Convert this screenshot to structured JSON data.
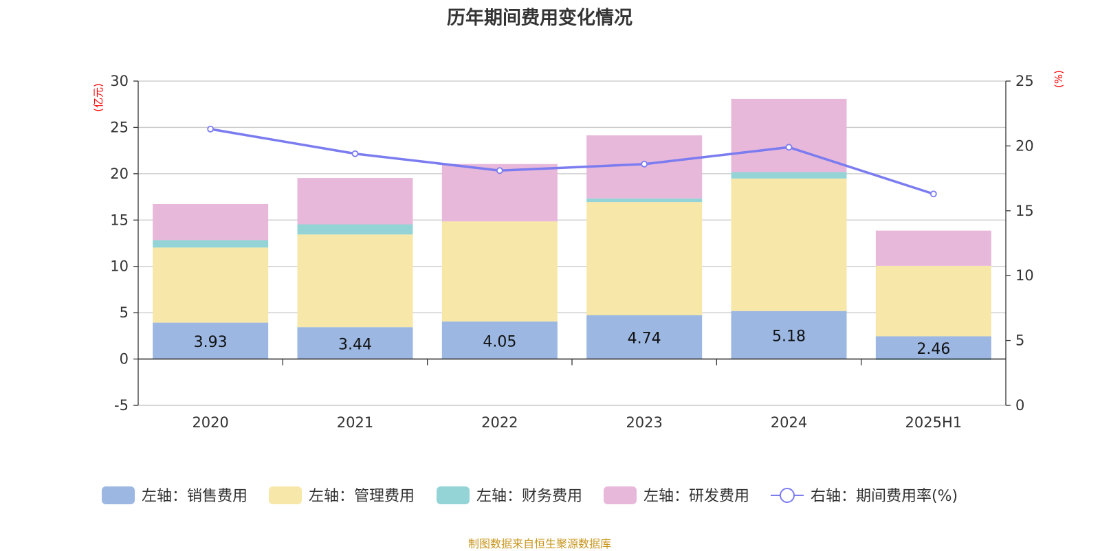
{
  "title": "历年期间费用变化情况",
  "footer": "制图数据来自恒生聚源数据库",
  "colors": {
    "sales": "#9bb7e2",
    "admin": "#f7e7a8",
    "finance": "#94d4d6",
    "rnd": "#e8b8da",
    "rate": "#7b7cf0",
    "unit": "#ff0000"
  },
  "chart_data": {
    "type": "bar",
    "stacked": true,
    "categories": [
      "2020",
      "2021",
      "2022",
      "2023",
      "2024",
      "2025H1"
    ],
    "left_axis": {
      "unit": "(亿元)",
      "ylim": [
        -5,
        30
      ],
      "ticks": [
        "-5",
        "0",
        "5",
        "10",
        "15",
        "20",
        "25",
        "30"
      ]
    },
    "right_axis": {
      "unit": "(%)",
      "ylim": [
        0,
        25
      ],
      "ticks": [
        "0",
        "5",
        "10",
        "15",
        "20",
        "25"
      ]
    },
    "series": [
      {
        "name": "左轴：销售费用",
        "color_key": "sales",
        "axis": "left",
        "values": [
          3.93,
          3.44,
          4.05,
          4.74,
          5.18,
          2.46
        ],
        "labels": [
          "3.93",
          "3.44",
          "4.05",
          "4.74",
          "5.18",
          "2.46"
        ]
      },
      {
        "name": "左轴：管理费用",
        "color_key": "admin",
        "axis": "left",
        "values": [
          8.1,
          10.0,
          10.8,
          12.2,
          14.3,
          7.6
        ]
      },
      {
        "name": "左轴：财务费用",
        "color_key": "finance",
        "axis": "left",
        "values": [
          0.8,
          1.1,
          0.0,
          0.4,
          0.7,
          -0.1
        ]
      },
      {
        "name": "左轴：研发费用",
        "color_key": "rnd",
        "axis": "left",
        "values": [
          3.9,
          5.0,
          6.2,
          6.8,
          7.9,
          3.8
        ]
      },
      {
        "name": "右轴：期间费用率(%)",
        "color_key": "rate",
        "axis": "right",
        "type": "line",
        "values": [
          21.3,
          19.4,
          18.1,
          18.6,
          19.9,
          16.3
        ]
      }
    ],
    "grid": true,
    "legend_position": "bottom"
  }
}
